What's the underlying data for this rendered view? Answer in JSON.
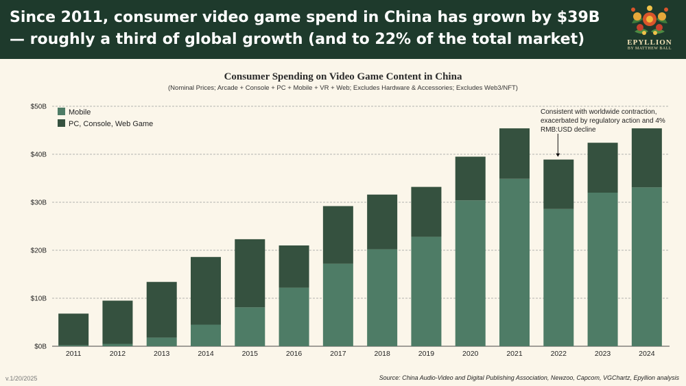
{
  "header": {
    "headline": "Since 2011, consumer video game spend in China has grown by $39B — roughly a third of global growth (and to 22% of the total market)",
    "logo_name": "EPYLLION",
    "logo_sub": "BY MATTHEW BALL"
  },
  "footer": {
    "version": "v.1/20/2025",
    "source": "Source: China Audio-Video and Digital Publishing Association, Newzoo, Capcom, VGChartz, Epyllion analysis"
  },
  "colors": {
    "mobile": "#4e7c66",
    "other": "#35513f",
    "header_bg": "#1e3a2c"
  },
  "chart_data": {
    "type": "bar",
    "stacked": true,
    "title": "Consumer Spending on Video Game Content in China",
    "subtitle": "(Nominal Prices; Arcade + Console + PC + Mobile + VR + Web; Excludes Hardware & Accessories; Excludes Web3/NFT)",
    "categories": [
      "2011",
      "2012",
      "2013",
      "2014",
      "2015",
      "2016",
      "2017",
      "2018",
      "2019",
      "2020",
      "2021",
      "2022",
      "2023",
      "2024"
    ],
    "series": [
      {
        "name": "Mobile",
        "color": "#4e7c66",
        "values": [
          0.2,
          0.5,
          1.8,
          4.5,
          8.1,
          12.2,
          17.2,
          20.2,
          22.8,
          30.4,
          34.9,
          28.6,
          32.0,
          33.1
        ]
      },
      {
        "name": "PC, Console, Web Game",
        "color": "#35513f",
        "values": [
          6.6,
          9.0,
          11.6,
          14.1,
          14.2,
          8.8,
          12.0,
          11.4,
          10.4,
          9.1,
          10.5,
          10.3,
          10.4,
          12.3
        ]
      }
    ],
    "y_ticks": [
      "$0B",
      "$10B",
      "$20B",
      "$30B",
      "$40B",
      "$50B"
    ],
    "ylim": [
      0,
      50
    ],
    "annotation": {
      "text": "Consistent with worldwide contraction, exacerbated by regulatory action and 4% RMB:USD decline",
      "target": "2022"
    }
  }
}
